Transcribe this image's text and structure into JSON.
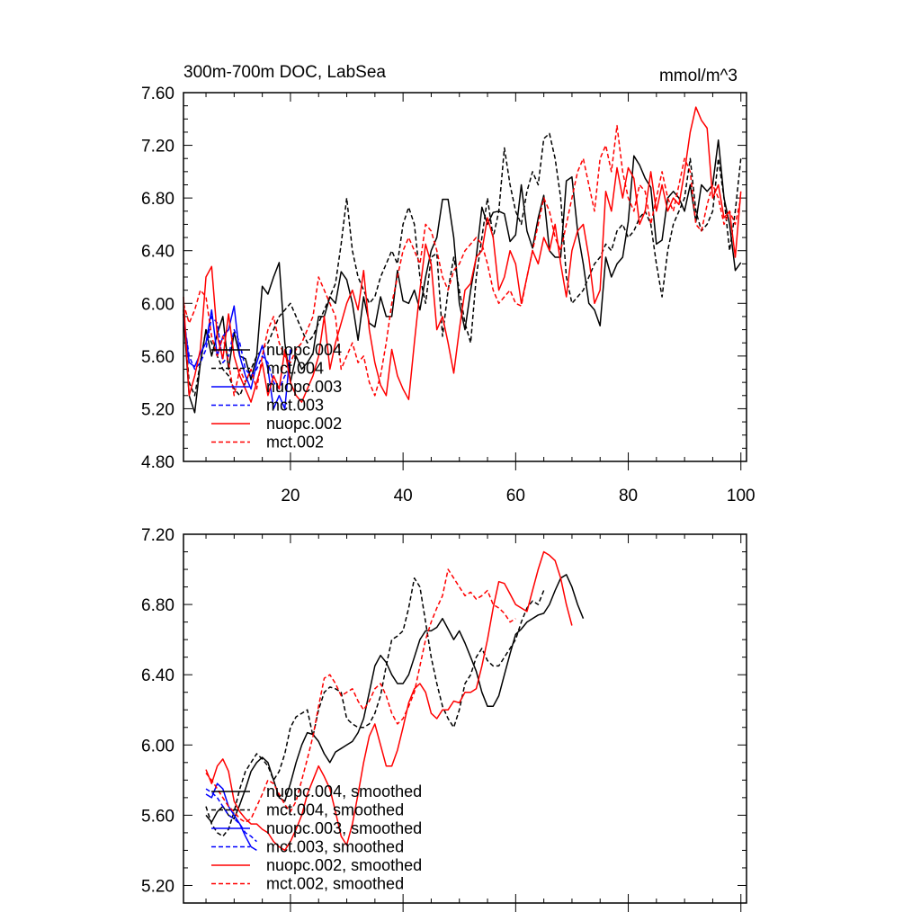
{
  "chart_data": [
    {
      "type": "line",
      "title": "300m-700m DOC, LabSea",
      "units": "mmol/m^3",
      "xlim": [
        1,
        101
      ],
      "ylim": [
        4.8,
        7.6
      ],
      "xticks": [
        20,
        40,
        60,
        80,
        100
      ],
      "xtick_labels": [
        "20",
        "40",
        "60",
        "80",
        "100"
      ],
      "yticks": [
        4.8,
        5.2,
        5.6,
        6.0,
        6.4,
        6.8,
        7.2,
        7.6
      ],
      "ytick_labels": [
        "4.80",
        "5.20",
        "5.60",
        "6.00",
        "6.40",
        "6.80",
        "7.20",
        "7.60"
      ],
      "legend_position": "lower-left",
      "series": [
        {
          "name": "nuopc.004",
          "color": "#000000",
          "dash": "solid",
          "x_start": 1,
          "values": [
            5.92,
            5.3,
            5.17,
            5.55,
            5.8,
            5.6,
            5.77,
            5.9,
            5.5,
            5.78,
            5.6,
            5.58,
            5.42,
            5.6,
            6.13,
            6.07,
            6.2,
            6.31,
            5.7,
            5.4,
            5.6,
            5.5,
            5.55,
            5.62,
            5.9,
            5.9,
            6.05,
            6.0,
            6.24,
            6.18,
            6.0,
            5.72,
            6.05,
            5.85,
            5.82,
            6.05,
            5.9,
            5.9,
            6.25,
            6.02,
            6.0,
            6.1,
            5.95,
            6.2,
            6.4,
            6.5,
            6.79,
            6.79,
            6.5,
            6.0,
            5.8,
            6.1,
            6.35,
            6.73,
            6.6,
            6.69,
            6.7,
            6.68,
            6.47,
            6.52,
            6.9,
            6.55,
            6.42,
            6.65,
            6.82,
            6.4,
            6.35,
            6.35,
            6.93,
            6.96,
            6.55,
            6.3,
            6.0,
            5.95,
            5.83,
            6.35,
            6.2,
            6.3,
            6.35,
            6.62,
            7.12,
            7.05,
            6.95,
            6.88,
            6.45,
            6.48,
            6.8,
            6.85,
            6.8,
            6.7,
            6.9,
            6.62,
            6.9,
            6.85,
            6.9,
            7.24,
            6.8,
            6.6,
            6.25,
            6.31
          ]
        },
        {
          "name": "mct.004",
          "color": "#000000",
          "dash": "dashed",
          "x_start": 1,
          "values": [
            5.95,
            5.4,
            5.3,
            5.55,
            5.8,
            5.7,
            5.6,
            5.5,
            5.45,
            5.35,
            5.3,
            5.4,
            5.5,
            5.6,
            5.65,
            5.7,
            5.8,
            5.9,
            5.95,
            6.0,
            5.9,
            5.8,
            5.7,
            5.75,
            5.85,
            5.95,
            6.05,
            6.15,
            6.45,
            6.8,
            6.4,
            6.2,
            6.1,
            6.0,
            6.05,
            6.2,
            6.3,
            6.4,
            6.3,
            6.6,
            6.73,
            6.6,
            6.2,
            6.0,
            6.35,
            6.38,
            5.75,
            6.1,
            6.35,
            6.1,
            5.85,
            5.7,
            6.2,
            6.5,
            6.8,
            6.5,
            6.7,
            7.18,
            6.9,
            6.7,
            6.6,
            6.85,
            7.0,
            6.9,
            7.25,
            7.29,
            7.1,
            6.8,
            6.2,
            6.0,
            6.05,
            6.1,
            6.2,
            6.3,
            6.35,
            6.45,
            6.4,
            6.55,
            6.6,
            6.5,
            6.55,
            6.65,
            6.7,
            6.6,
            6.3,
            6.05,
            6.4,
            6.6,
            6.7,
            6.8,
            7.1,
            6.7,
            6.55,
            6.6,
            6.7,
            7.1,
            6.8,
            6.4,
            6.7,
            7.1
          ]
        },
        {
          "name": "nuopc.003",
          "color": "#0000ff",
          "dash": "solid",
          "x_start": 1,
          "values": [
            5.92,
            5.55,
            5.52,
            5.62,
            5.7,
            5.95,
            5.6,
            5.75,
            5.8,
            5.98,
            5.6,
            5.45,
            5.35,
            5.55,
            5.68,
            5.5,
            5.2,
            5.3,
            5.2,
            5.65
          ]
        },
        {
          "name": "mct.003",
          "color": "#0000ff",
          "dash": "dashed",
          "x_start": 1,
          "values": [
            5.9,
            5.6,
            5.5,
            5.55,
            5.65,
            5.9,
            5.85,
            5.55,
            5.6,
            5.8,
            5.7,
            5.5,
            5.45,
            5.5,
            5.6,
            5.55,
            5.4,
            5.35,
            5.45,
            5.5
          ]
        },
        {
          "name": "nuopc.002",
          "color": "#ff0000",
          "dash": "solid",
          "x_start": 1,
          "values": [
            6.05,
            5.3,
            5.45,
            5.65,
            6.2,
            6.28,
            5.75,
            5.58,
            5.92,
            5.6,
            5.45,
            5.35,
            5.25,
            5.4,
            5.55,
            5.3,
            5.45,
            5.35,
            5.65,
            5.4,
            5.3,
            5.25,
            5.35,
            5.45,
            5.6,
            5.9,
            5.5,
            5.7,
            5.85,
            6.0,
            6.1,
            5.95,
            6.25,
            5.8,
            5.55,
            5.38,
            5.3,
            5.65,
            5.45,
            5.35,
            5.27,
            5.7,
            6.1,
            6.45,
            6.3,
            5.8,
            5.9,
            5.7,
            5.47,
            5.8,
            6.1,
            6.15,
            6.35,
            6.4,
            6.65,
            6.5,
            6.1,
            6.2,
            6.4,
            6.3,
            6.0,
            6.2,
            6.4,
            6.3,
            6.5,
            6.4,
            6.6,
            6.3,
            6.05,
            6.4,
            6.55,
            6.6,
            6.35,
            6.0,
            6.1,
            6.85,
            6.7,
            7.03,
            6.8,
            7.03,
            6.95,
            6.6,
            6.7,
            7.0,
            6.7,
            6.9,
            6.7,
            6.8,
            6.75,
            7.0,
            7.3,
            7.49,
            7.39,
            7.33,
            6.8,
            6.9,
            6.65,
            6.7,
            6.35,
            6.85
          ]
        },
        {
          "name": "mct.002",
          "color": "#ff0000",
          "dash": "dashed",
          "x_start": 1,
          "values": [
            6.0,
            5.85,
            5.95,
            6.1,
            6.05,
            5.75,
            5.6,
            5.75,
            5.55,
            5.3,
            5.5,
            5.4,
            5.5,
            5.35,
            5.6,
            5.8,
            5.9,
            5.7,
            5.6,
            5.55,
            5.65,
            5.7,
            5.8,
            5.9,
            6.2,
            6.1,
            6.0,
            5.9,
            5.5,
            5.6,
            5.7,
            5.55,
            5.6,
            5.4,
            5.3,
            5.45,
            5.7,
            6.0,
            6.2,
            6.4,
            6.5,
            6.4,
            6.3,
            6.6,
            6.55,
            6.4,
            6.2,
            6.1,
            6.25,
            6.3,
            6.4,
            6.45,
            6.5,
            6.45,
            6.3,
            6.1,
            6.0,
            6.05,
            6.1,
            6.0,
            5.98,
            6.2,
            6.4,
            6.6,
            6.8,
            6.7,
            6.5,
            6.4,
            6.6,
            6.8,
            7.0,
            7.1,
            6.9,
            6.7,
            7.1,
            7.2,
            7.0,
            7.35,
            7.0,
            6.8,
            6.7,
            6.9,
            6.85,
            6.6,
            6.8,
            7.0,
            6.8,
            6.7,
            6.9,
            7.1,
            7.0,
            6.6,
            6.55,
            6.75,
            6.9,
            6.8,
            6.6,
            6.7,
            6.6,
            6.8
          ]
        }
      ]
    },
    {
      "type": "line",
      "title": "",
      "xlim": [
        1,
        101
      ],
      "ylim": [
        5.1,
        7.2
      ],
      "xticks": [
        20,
        40,
        60,
        80,
        100
      ],
      "xtick_labels": [],
      "yticks": [
        5.2,
        5.6,
        6.0,
        6.4,
        6.8,
        7.2
      ],
      "ytick_labels": [
        "5.20",
        "5.60",
        "6.00",
        "6.40",
        "6.80",
        "7.20"
      ],
      "legend_position": "lower-left",
      "series": [
        {
          "name": "nuopc.004, smoothed",
          "color": "#000000",
          "dash": "solid",
          "x_start": 5,
          "values": [
            5.6,
            5.56,
            5.62,
            5.65,
            5.6,
            5.58,
            5.66,
            5.75,
            5.85,
            5.9,
            5.93,
            5.9,
            5.8,
            5.7,
            5.68,
            5.78,
            5.9,
            6.0,
            6.07,
            6.06,
            6.02,
            5.95,
            5.9,
            5.96,
            5.98,
            6.0,
            6.02,
            6.07,
            6.15,
            6.3,
            6.45,
            6.51,
            6.47,
            6.4,
            6.35,
            6.35,
            6.4,
            6.5,
            6.6,
            6.65,
            6.65,
            6.67,
            6.72,
            6.66,
            6.6,
            6.65,
            6.58,
            6.5,
            6.42,
            6.3,
            6.22,
            6.22,
            6.28,
            6.4,
            6.52,
            6.63,
            6.66,
            6.7,
            6.72,
            6.74,
            6.75,
            6.8,
            6.88,
            6.95,
            6.97,
            6.9,
            6.8,
            6.72
          ]
        },
        {
          "name": "mct.004, smoothed",
          "color": "#000000",
          "dash": "dashed",
          "x_start": 5,
          "values": [
            5.65,
            5.55,
            5.5,
            5.48,
            5.52,
            5.62,
            5.75,
            5.85,
            5.9,
            5.95,
            5.92,
            5.88,
            5.8,
            5.85,
            5.95,
            6.1,
            6.16,
            6.18,
            6.2,
            6.05,
            6.2,
            6.3,
            6.33,
            6.32,
            6.3,
            6.15,
            6.12,
            6.1,
            6.1,
            6.12,
            6.18,
            6.28,
            6.45,
            6.6,
            6.62,
            6.65,
            6.78,
            6.95,
            6.9,
            6.7,
            6.5,
            6.35,
            6.22,
            6.15,
            6.1,
            6.2,
            6.35,
            6.4,
            6.5,
            6.55,
            6.48,
            6.45,
            6.45,
            6.5,
            6.55,
            6.6,
            6.7,
            6.78,
            6.82,
            6.8,
            6.88
          ]
        },
        {
          "name": "nuopc.003, smoothed",
          "color": "#0000ff",
          "dash": "solid",
          "x_start": 5,
          "values": [
            5.72,
            5.7,
            5.78,
            5.75,
            5.65,
            5.6,
            5.55,
            5.48,
            5.42,
            5.4
          ]
        },
        {
          "name": "mct.003, smoothed",
          "color": "#0000ff",
          "dash": "dashed",
          "x_start": 5,
          "values": [
            5.75,
            5.73,
            5.7,
            5.65,
            5.6,
            5.58,
            5.55,
            5.5,
            5.48,
            5.45
          ]
        },
        {
          "name": "nuopc.002, smoothed",
          "color": "#ff0000",
          "dash": "solid",
          "x_start": 5,
          "values": [
            5.86,
            5.78,
            5.88,
            5.92,
            5.85,
            5.68,
            5.62,
            5.58,
            5.55,
            5.55,
            5.52,
            5.5,
            5.45,
            5.42,
            5.4,
            5.45,
            5.52,
            5.6,
            5.72,
            5.8,
            5.88,
            5.82,
            5.75,
            5.62,
            5.48,
            5.43,
            5.55,
            5.72,
            5.9,
            6.05,
            6.12,
            6.0,
            5.88,
            5.88,
            5.97,
            6.1,
            6.24,
            6.32,
            6.35,
            6.3,
            6.18,
            6.15,
            6.2,
            6.2,
            6.25,
            6.24,
            6.3,
            6.3,
            6.32,
            6.45,
            6.6,
            6.78,
            6.93,
            6.92,
            6.86,
            6.8,
            6.78,
            6.76,
            6.88,
            7.0,
            7.1,
            7.08,
            7.05,
            6.95,
            6.8,
            6.68
          ]
        },
        {
          "name": "mct.002, smoothed",
          "color": "#ff0000",
          "dash": "dashed",
          "x_start": 5,
          "values": [
            5.84,
            5.8,
            5.75,
            5.7,
            5.65,
            5.62,
            5.58,
            5.56,
            5.58,
            5.65,
            5.72,
            5.8,
            5.78,
            5.72,
            5.66,
            5.62,
            5.68,
            5.8,
            5.92,
            6.05,
            6.22,
            6.38,
            6.4,
            6.35,
            6.28,
            6.3,
            6.32,
            6.25,
            6.2,
            6.25,
            6.32,
            6.35,
            6.28,
            6.18,
            6.12,
            6.15,
            6.22,
            6.3,
            6.45,
            6.6,
            6.7,
            6.78,
            6.85,
            7.0,
            6.95,
            6.9,
            6.85,
            6.87,
            6.83,
            6.85,
            6.88,
            6.8,
            6.78,
            6.75,
            6.7,
            6.72
          ]
        }
      ]
    }
  ]
}
